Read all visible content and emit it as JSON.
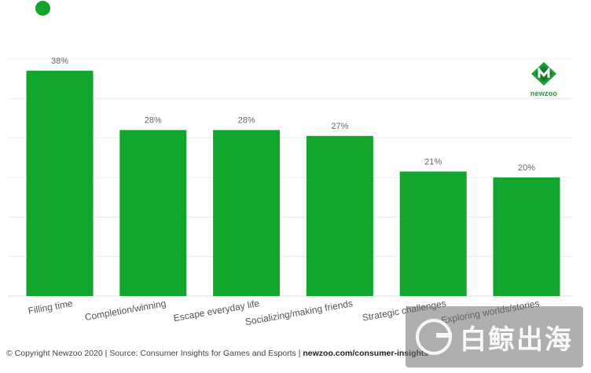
{
  "chart_data": {
    "type": "bar",
    "categories": [
      "Filling time",
      "Completion/winning",
      "Escape everyday life",
      "Socializing/making friends",
      "Strategic challenges",
      "Exploring worlds/stories"
    ],
    "values": [
      38,
      28,
      28,
      27,
      21,
      20
    ],
    "value_labels": [
      "38%",
      "28%",
      "28%",
      "27%",
      "21%",
      "20%"
    ],
    "ylim": [
      0,
      40
    ],
    "grid": true,
    "bar_color": "#12a52e"
  },
  "logo": {
    "text": "newzoo",
    "color": "#1a9e36"
  },
  "footer": {
    "text": "© Copyright Newzoo 2020 | Source: Consumer Insights for Games and Esports | ",
    "link": "newzoo.com/consumer-insights"
  },
  "watermark": {
    "text": "白鲸出海"
  },
  "colors": {
    "accent": "#12a52e"
  }
}
